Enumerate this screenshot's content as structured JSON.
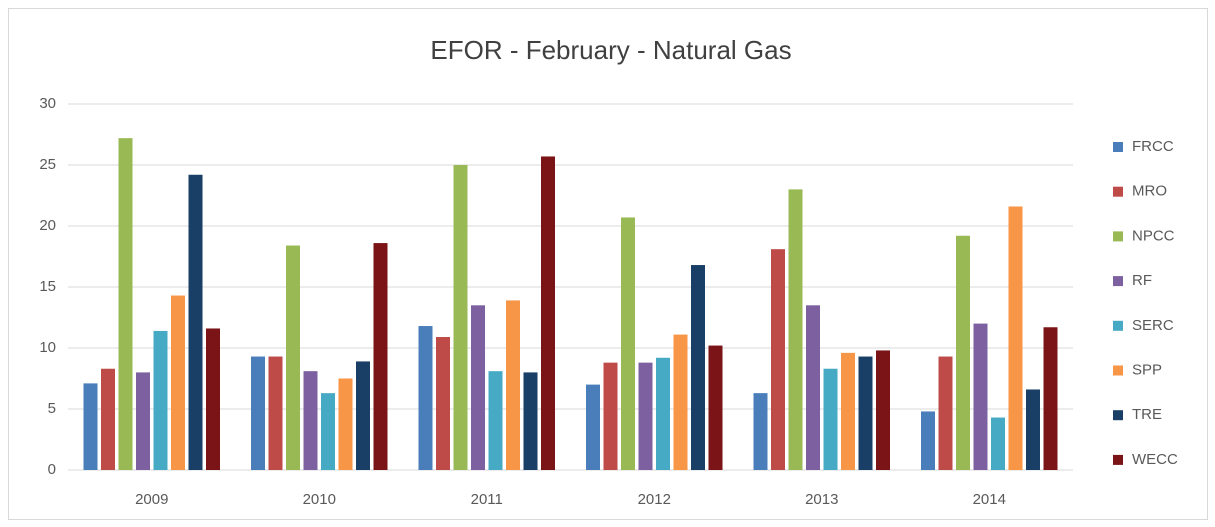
{
  "chart_data": {
    "type": "bar",
    "title": "EFOR - February - Natural Gas",
    "categories": [
      "2009",
      "2010",
      "2011",
      "2012",
      "2013",
      "2014"
    ],
    "series": [
      {
        "name": "FRCC",
        "color": "#4a7ebb",
        "values": [
          7.1,
          9.3,
          11.8,
          7.0,
          6.3,
          4.8
        ]
      },
      {
        "name": "MRO",
        "color": "#be4b48",
        "values": [
          8.3,
          9.3,
          10.9,
          8.8,
          18.1,
          9.3
        ]
      },
      {
        "name": "NPCC",
        "color": "#98b954",
        "values": [
          27.2,
          18.4,
          25.0,
          20.7,
          23.0,
          19.2
        ]
      },
      {
        "name": "RF",
        "color": "#7d60a0",
        "values": [
          8.0,
          8.1,
          13.5,
          8.8,
          13.5,
          12.0
        ]
      },
      {
        "name": "SERC",
        "color": "#46aac5",
        "values": [
          11.4,
          6.3,
          8.1,
          9.2,
          8.3,
          4.3
        ]
      },
      {
        "name": "SPP",
        "color": "#f79646",
        "values": [
          14.3,
          7.5,
          13.9,
          11.1,
          9.6,
          21.6
        ]
      },
      {
        "name": "TRE",
        "color": "#1a3f66",
        "values": [
          24.2,
          8.9,
          8.0,
          16.8,
          9.3,
          6.6
        ]
      },
      {
        "name": "WECC",
        "color": "#7a1416",
        "values": [
          11.6,
          18.6,
          25.7,
          10.2,
          9.8,
          11.7
        ]
      }
    ],
    "ylim": [
      0,
      30
    ],
    "yticks": [
      0,
      5,
      10,
      15,
      20,
      25,
      30
    ],
    "grid": true,
    "legend": "right"
  }
}
